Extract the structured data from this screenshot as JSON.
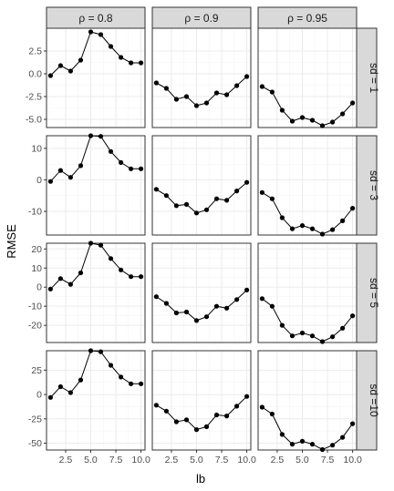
{
  "chart_data": {
    "type": "line",
    "xlabel": "lb",
    "ylabel": "RMSE",
    "xlim": [
      0.6,
      10.4
    ],
    "x_ticks": [
      2.5,
      5.0,
      7.5,
      10.0
    ],
    "x_tick_labels": [
      "2.5",
      "5.0",
      "7.5",
      "10.0"
    ],
    "x": [
      1,
      2,
      3,
      4,
      5,
      6,
      7,
      8,
      9,
      10
    ],
    "columns": [
      {
        "label": "ρ = 0.8"
      },
      {
        "label": "ρ = 0.9"
      },
      {
        "label": "ρ = 0.95"
      }
    ],
    "rows": [
      {
        "label": "sd = 1",
        "ylim": [
          -5.9,
          5.0
        ],
        "y_ticks": [
          2.5,
          0,
          -2.5,
          -5
        ],
        "y_tick_labels": [
          "2.5",
          "0.0",
          "-2.5",
          "-5.0"
        ],
        "series": [
          [
            -0.2,
            0.9,
            0.3,
            1.5,
            4.6,
            4.3,
            3.0,
            1.8,
            1.2,
            1.2
          ],
          [
            -1.0,
            -1.6,
            -2.8,
            -2.5,
            -3.5,
            -3.2,
            -2.1,
            -2.3,
            -1.3,
            -0.3
          ],
          [
            -1.4,
            -2.0,
            -4.0,
            -5.2,
            -4.8,
            -5.1,
            -5.7,
            -5.3,
            -4.4,
            -3.2
          ]
        ]
      },
      {
        "label": "sd = 3",
        "ylim": [
          -17.5,
          14.0
        ],
        "y_ticks": [
          10,
          0,
          -10
        ],
        "y_tick_labels": [
          "10",
          "0",
          "-10"
        ],
        "series": [
          [
            -0.5,
            3.0,
            0.8,
            4.5,
            14.0,
            13.8,
            9.0,
            5.5,
            3.5,
            3.5
          ],
          [
            -3.0,
            -5.0,
            -8.2,
            -7.8,
            -10.5,
            -9.5,
            -6.0,
            -6.5,
            -3.5,
            -0.8
          ],
          [
            -4.0,
            -6.0,
            -12.0,
            -15.5,
            -14.5,
            -15.5,
            -17.2,
            -15.8,
            -13.0,
            -9.0
          ]
        ]
      },
      {
        "label": "sd = 5",
        "ylim": [
          -29.0,
          23.0
        ],
        "y_ticks": [
          20,
          10,
          0,
          -10,
          -20
        ],
        "y_tick_labels": [
          "20",
          "10",
          "0",
          "-10",
          "-20"
        ],
        "series": [
          [
            -1.0,
            4.5,
            1.5,
            7.5,
            23.0,
            22.0,
            15.0,
            9.0,
            5.5,
            5.5
          ],
          [
            -5.0,
            -8.5,
            -13.5,
            -13.0,
            -17.5,
            -15.5,
            -10.0,
            -11.0,
            -6.5,
            -1.5
          ],
          [
            -6.0,
            -10.0,
            -20.0,
            -25.5,
            -24.0,
            -25.5,
            -28.5,
            -26.0,
            -21.5,
            -15.0
          ]
        ]
      },
      {
        "label": "sd =10",
        "ylim": [
          -57.0,
          45.0
        ],
        "y_ticks": [
          25,
          0,
          -25,
          -50
        ],
        "y_tick_labels": [
          "25",
          "0",
          "-25",
          "-50"
        ],
        "series": [
          [
            -3.0,
            8.0,
            2.0,
            15.0,
            45.0,
            44.0,
            30.0,
            18.0,
            11.0,
            11.0
          ],
          [
            -11.0,
            -17.0,
            -28.0,
            -26.0,
            -36.0,
            -33.0,
            -21.0,
            -22.0,
            -12.0,
            -2.0
          ],
          [
            -13.0,
            -20.0,
            -41.0,
            -51.0,
            -48.0,
            -51.0,
            -56.5,
            -52.0,
            -44.0,
            -30.0
          ]
        ]
      }
    ]
  }
}
